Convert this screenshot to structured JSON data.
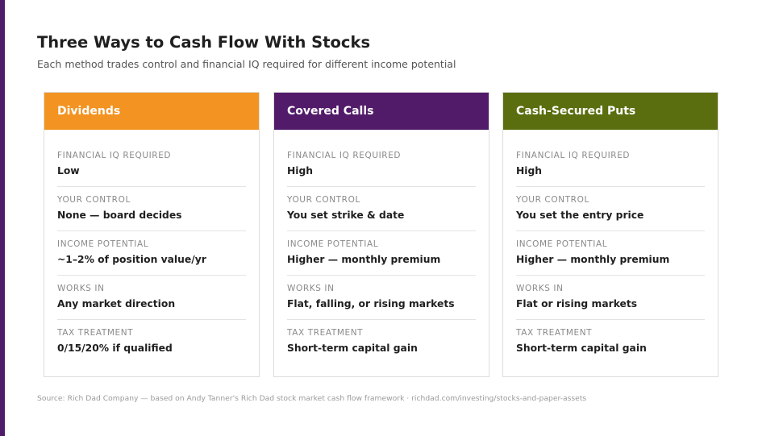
{
  "title": "Three Ways to Cash Flow With Stocks",
  "subtitle": "Each method trades control and financial IQ required for different income potential",
  "colors": {
    "accent_bar": "#4f1c6b",
    "dividends": "#f39321",
    "covered_calls": "#521b6a",
    "cash_secured_puts": "#5a6e0f"
  },
  "cards": [
    {
      "title": "Dividends",
      "rows": [
        {
          "label": "FINANCIAL IQ REQUIRED",
          "value": "Low"
        },
        {
          "label": "YOUR CONTROL",
          "value": "None — board decides"
        },
        {
          "label": "INCOME POTENTIAL",
          "value": "~1–2% of position value/yr"
        },
        {
          "label": "WORKS IN",
          "value": "Any market direction"
        },
        {
          "label": "TAX TREATMENT",
          "value": "0/15/20% if qualified"
        }
      ]
    },
    {
      "title": "Covered Calls",
      "rows": [
        {
          "label": "FINANCIAL IQ REQUIRED",
          "value": "High"
        },
        {
          "label": "YOUR CONTROL",
          "value": "You set strike & date"
        },
        {
          "label": "INCOME POTENTIAL",
          "value": "Higher — monthly premium"
        },
        {
          "label": "WORKS IN",
          "value": "Flat, falling, or rising markets"
        },
        {
          "label": "TAX TREATMENT",
          "value": "Short-term capital gain"
        }
      ]
    },
    {
      "title": "Cash-Secured Puts",
      "rows": [
        {
          "label": "FINANCIAL IQ REQUIRED",
          "value": "High"
        },
        {
          "label": "YOUR CONTROL",
          "value": "You set the entry price"
        },
        {
          "label": "INCOME POTENTIAL",
          "value": "Higher — monthly premium"
        },
        {
          "label": "WORKS IN",
          "value": "Flat or rising markets"
        },
        {
          "label": "TAX TREATMENT",
          "value": "Short-term capital gain"
        }
      ]
    }
  ],
  "source": "Source: Rich Dad Company — based on Andy Tanner's Rich Dad stock market cash flow framework · richdad.com/investing/stocks-and-paper-assets"
}
